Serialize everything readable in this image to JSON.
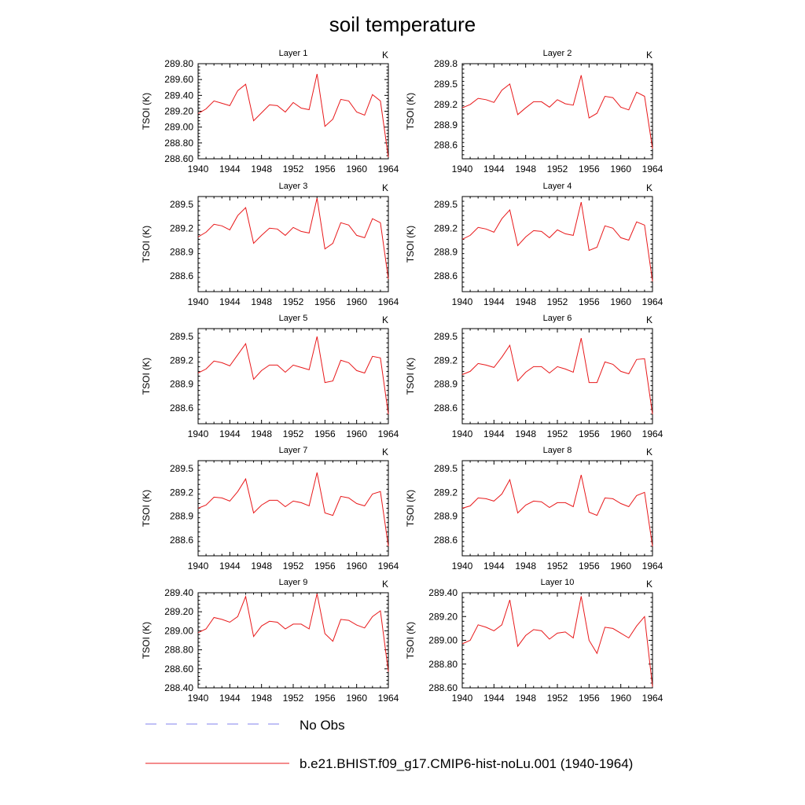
{
  "figure": {
    "title": "soil temperature",
    "legend": [
      {
        "label": "No Obs",
        "color": "#9a9af0",
        "style": "dashed"
      },
      {
        "label": "b.e21.BHIST.f09_g17.CMIP6-hist-noLu.001 (1940-1964)",
        "color": "#e8191b",
        "style": "solid"
      }
    ]
  },
  "chart_data": [
    {
      "type": "line",
      "title": "Layer 1",
      "unit_label": "K",
      "ylabel": "TSOI  (K)",
      "x": [
        1940,
        1941,
        1942,
        1943,
        1944,
        1945,
        1946,
        1947,
        1948,
        1949,
        1950,
        1951,
        1952,
        1953,
        1954,
        1955,
        1956,
        1957,
        1958,
        1959,
        1960,
        1961,
        1962,
        1963,
        1964
      ],
      "xlim": [
        1940,
        1964
      ],
      "xticks": [
        "1940",
        "1944",
        "1948",
        "1952",
        "1956",
        "1960",
        "1964"
      ],
      "ylim": [
        288.6,
        289.8
      ],
      "yticks": [
        "288.60",
        "288.80",
        "289.00",
        "289.20",
        "289.40",
        "289.60",
        "289.80"
      ],
      "series": [
        {
          "color": "#e8191b",
          "values": [
            289.17,
            289.23,
            289.33,
            289.3,
            289.27,
            289.46,
            289.54,
            289.08,
            289.18,
            289.28,
            289.27,
            289.19,
            289.31,
            289.24,
            289.22,
            289.67,
            289.01,
            289.1,
            289.35,
            289.33,
            289.19,
            289.15,
            289.41,
            289.33,
            288.62
          ]
        }
      ]
    },
    {
      "type": "line",
      "title": "Layer 2",
      "unit_label": "K",
      "ylabel": "TSOI  (K)",
      "x": [
        1940,
        1941,
        1942,
        1943,
        1944,
        1945,
        1946,
        1947,
        1948,
        1949,
        1950,
        1951,
        1952,
        1953,
        1954,
        1955,
        1956,
        1957,
        1958,
        1959,
        1960,
        1961,
        1962,
        1963,
        1964
      ],
      "xlim": [
        1940,
        1964
      ],
      "xticks": [
        "1940",
        "1944",
        "1948",
        "1952",
        "1956",
        "1960",
        "1964"
      ],
      "ylim": [
        288.4,
        289.8
      ],
      "yticks": [
        "288.6",
        "288.9",
        "289.2",
        "289.5",
        "289.8"
      ],
      "series": [
        {
          "color": "#e8191b",
          "values": [
            289.15,
            289.2,
            289.29,
            289.27,
            289.23,
            289.41,
            289.5,
            289.05,
            289.15,
            289.24,
            289.24,
            289.16,
            289.27,
            289.21,
            289.19,
            289.63,
            289.0,
            289.07,
            289.32,
            289.3,
            289.16,
            289.12,
            289.38,
            289.32,
            288.55
          ]
        }
      ]
    },
    {
      "type": "line",
      "title": "Layer 3",
      "unit_label": "K",
      "ylabel": "TSOI  (K)",
      "x": [
        1940,
        1941,
        1942,
        1943,
        1944,
        1945,
        1946,
        1947,
        1948,
        1949,
        1950,
        1951,
        1952,
        1953,
        1954,
        1955,
        1956,
        1957,
        1958,
        1959,
        1960,
        1961,
        1962,
        1963,
        1964
      ],
      "xlim": [
        1940,
        1964
      ],
      "xticks": [
        "1940",
        "1944",
        "1948",
        "1952",
        "1956",
        "1960",
        "1964"
      ],
      "ylim": [
        288.4,
        289.6
      ],
      "yticks": [
        "288.6",
        "288.9",
        "289.2",
        "289.5"
      ],
      "series": [
        {
          "color": "#e8191b",
          "values": [
            289.09,
            289.15,
            289.25,
            289.23,
            289.18,
            289.36,
            289.46,
            289.01,
            289.11,
            289.2,
            289.19,
            289.11,
            289.21,
            289.16,
            289.14,
            289.58,
            288.94,
            289.01,
            289.27,
            289.24,
            289.11,
            289.08,
            289.32,
            289.27,
            288.56
          ]
        }
      ]
    },
    {
      "type": "line",
      "title": "Layer 4",
      "unit_label": "K",
      "ylabel": "TSOI  (K)",
      "x": [
        1940,
        1941,
        1942,
        1943,
        1944,
        1945,
        1946,
        1947,
        1948,
        1949,
        1950,
        1951,
        1952,
        1953,
        1954,
        1955,
        1956,
        1957,
        1958,
        1959,
        1960,
        1961,
        1962,
        1963,
        1964
      ],
      "xlim": [
        1940,
        1964
      ],
      "xticks": [
        "1940",
        "1944",
        "1948",
        "1952",
        "1956",
        "1960",
        "1964"
      ],
      "ylim": [
        288.4,
        289.6
      ],
      "yticks": [
        "288.6",
        "288.9",
        "289.2",
        "289.5"
      ],
      "series": [
        {
          "color": "#e8191b",
          "values": [
            289.06,
            289.11,
            289.21,
            289.19,
            289.15,
            289.32,
            289.43,
            288.98,
            289.09,
            289.17,
            289.16,
            289.08,
            289.18,
            289.13,
            289.11,
            289.53,
            288.92,
            288.96,
            289.23,
            289.2,
            289.08,
            289.05,
            289.28,
            289.24,
            288.53
          ]
        }
      ]
    },
    {
      "type": "line",
      "title": "Layer 5",
      "unit_label": "K",
      "ylabel": "TSOI  (K)",
      "x": [
        1940,
        1941,
        1942,
        1943,
        1944,
        1945,
        1946,
        1947,
        1948,
        1949,
        1950,
        1951,
        1952,
        1953,
        1954,
        1955,
        1956,
        1957,
        1958,
        1959,
        1960,
        1961,
        1962,
        1963,
        1964
      ],
      "xlim": [
        1940,
        1964
      ],
      "xticks": [
        "1940",
        "1944",
        "1948",
        "1952",
        "1956",
        "1960",
        "1964"
      ],
      "ylim": [
        288.4,
        289.6
      ],
      "yticks": [
        "288.6",
        "288.9",
        "289.2",
        "289.5"
      ],
      "series": [
        {
          "color": "#e8191b",
          "values": [
            289.04,
            289.09,
            289.19,
            289.17,
            289.13,
            289.27,
            289.41,
            288.96,
            289.07,
            289.14,
            289.14,
            289.05,
            289.14,
            289.11,
            289.08,
            289.5,
            288.92,
            288.94,
            289.2,
            289.17,
            289.07,
            289.04,
            289.25,
            289.23,
            288.52
          ]
        }
      ]
    },
    {
      "type": "line",
      "title": "Layer 6",
      "unit_label": "K",
      "ylabel": "TSOI  (K)",
      "x": [
        1940,
        1941,
        1942,
        1943,
        1944,
        1945,
        1946,
        1947,
        1948,
        1949,
        1950,
        1951,
        1952,
        1953,
        1954,
        1955,
        1956,
        1957,
        1958,
        1959,
        1960,
        1961,
        1962,
        1963,
        1964
      ],
      "xlim": [
        1940,
        1964
      ],
      "xticks": [
        "1940",
        "1944",
        "1948",
        "1952",
        "1956",
        "1960",
        "1964"
      ],
      "ylim": [
        288.4,
        289.6
      ],
      "yticks": [
        "288.6",
        "288.9",
        "289.2",
        "289.5"
      ],
      "series": [
        {
          "color": "#e8191b",
          "values": [
            289.02,
            289.06,
            289.16,
            289.14,
            289.11,
            289.24,
            289.39,
            288.94,
            289.05,
            289.12,
            289.12,
            289.04,
            289.12,
            289.09,
            289.05,
            289.48,
            288.92,
            288.92,
            289.18,
            289.15,
            289.06,
            289.03,
            289.21,
            289.22,
            288.52
          ]
        }
      ]
    },
    {
      "type": "line",
      "title": "Layer 7",
      "unit_label": "K",
      "ylabel": "TSOI  (K)",
      "x": [
        1940,
        1941,
        1942,
        1943,
        1944,
        1945,
        1946,
        1947,
        1948,
        1949,
        1950,
        1951,
        1952,
        1953,
        1954,
        1955,
        1956,
        1957,
        1958,
        1959,
        1960,
        1961,
        1962,
        1963,
        1964
      ],
      "xlim": [
        1940,
        1964
      ],
      "xticks": [
        "1940",
        "1944",
        "1948",
        "1952",
        "1956",
        "1960",
        "1964"
      ],
      "ylim": [
        288.4,
        289.6
      ],
      "yticks": [
        "288.6",
        "288.9",
        "289.2",
        "289.5"
      ],
      "series": [
        {
          "color": "#e8191b",
          "values": [
            289.0,
            289.04,
            289.14,
            289.13,
            289.09,
            289.21,
            289.37,
            288.94,
            289.04,
            289.1,
            289.1,
            289.02,
            289.09,
            289.07,
            289.03,
            289.45,
            288.94,
            288.91,
            289.15,
            289.13,
            289.06,
            289.03,
            289.18,
            289.21,
            288.52
          ]
        }
      ]
    },
    {
      "type": "line",
      "title": "Layer 8",
      "unit_label": "K",
      "ylabel": "TSOI  (K)",
      "x": [
        1940,
        1941,
        1942,
        1943,
        1944,
        1945,
        1946,
        1947,
        1948,
        1949,
        1950,
        1951,
        1952,
        1953,
        1954,
        1955,
        1956,
        1957,
        1958,
        1959,
        1960,
        1961,
        1962,
        1963,
        1964
      ],
      "xlim": [
        1940,
        1964
      ],
      "xticks": [
        "1940",
        "1944",
        "1948",
        "1952",
        "1956",
        "1960",
        "1964"
      ],
      "ylim": [
        288.4,
        289.6
      ],
      "yticks": [
        "288.6",
        "288.9",
        "289.2",
        "289.5"
      ],
      "series": [
        {
          "color": "#e8191b",
          "values": [
            289.0,
            289.03,
            289.13,
            289.12,
            289.09,
            289.18,
            289.36,
            288.94,
            289.04,
            289.09,
            289.08,
            289.01,
            289.07,
            289.07,
            289.02,
            289.42,
            288.95,
            288.91,
            289.13,
            289.12,
            289.06,
            289.02,
            289.16,
            289.2,
            288.52
          ]
        }
      ]
    },
    {
      "type": "line",
      "title": "Layer 9",
      "unit_label": "K",
      "ylabel": "TSOI  (K)",
      "x": [
        1940,
        1941,
        1942,
        1943,
        1944,
        1945,
        1946,
        1947,
        1948,
        1949,
        1950,
        1951,
        1952,
        1953,
        1954,
        1955,
        1956,
        1957,
        1958,
        1959,
        1960,
        1961,
        1962,
        1963,
        1964
      ],
      "xlim": [
        1940,
        1964
      ],
      "xticks": [
        "1940",
        "1944",
        "1948",
        "1952",
        "1956",
        "1960",
        "1964"
      ],
      "ylim": [
        288.4,
        289.4
      ],
      "yticks": [
        "288.40",
        "288.60",
        "288.80",
        "289.00",
        "289.20",
        "289.40"
      ],
      "series": [
        {
          "color": "#e8191b",
          "values": [
            288.98,
            289.02,
            289.14,
            289.12,
            289.09,
            289.15,
            289.36,
            288.94,
            289.05,
            289.1,
            289.09,
            289.02,
            289.07,
            289.07,
            289.02,
            289.39,
            288.97,
            288.89,
            289.12,
            289.11,
            289.06,
            289.03,
            289.15,
            289.21,
            288.57
          ]
        }
      ]
    },
    {
      "type": "line",
      "title": "Layer 10",
      "unit_label": "K",
      "ylabel": "TSOI  (K)",
      "x": [
        1940,
        1941,
        1942,
        1943,
        1944,
        1945,
        1946,
        1947,
        1948,
        1949,
        1950,
        1951,
        1952,
        1953,
        1954,
        1955,
        1956,
        1957,
        1958,
        1959,
        1960,
        1961,
        1962,
        1963,
        1964
      ],
      "xlim": [
        1940,
        1964
      ],
      "xticks": [
        "1940",
        "1944",
        "1948",
        "1952",
        "1956",
        "1960",
        "1964"
      ],
      "ylim": [
        288.6,
        289.4
      ],
      "yticks": [
        "288.60",
        "288.80",
        "289.00",
        "289.20",
        "289.40"
      ],
      "series": [
        {
          "color": "#e8191b",
          "values": [
            288.97,
            289.0,
            289.13,
            289.11,
            289.08,
            289.13,
            289.34,
            288.95,
            289.04,
            289.09,
            289.08,
            289.01,
            289.06,
            289.07,
            289.02,
            289.37,
            289.0,
            288.89,
            289.11,
            289.1,
            289.06,
            289.02,
            289.12,
            289.2,
            288.61
          ]
        }
      ]
    }
  ]
}
